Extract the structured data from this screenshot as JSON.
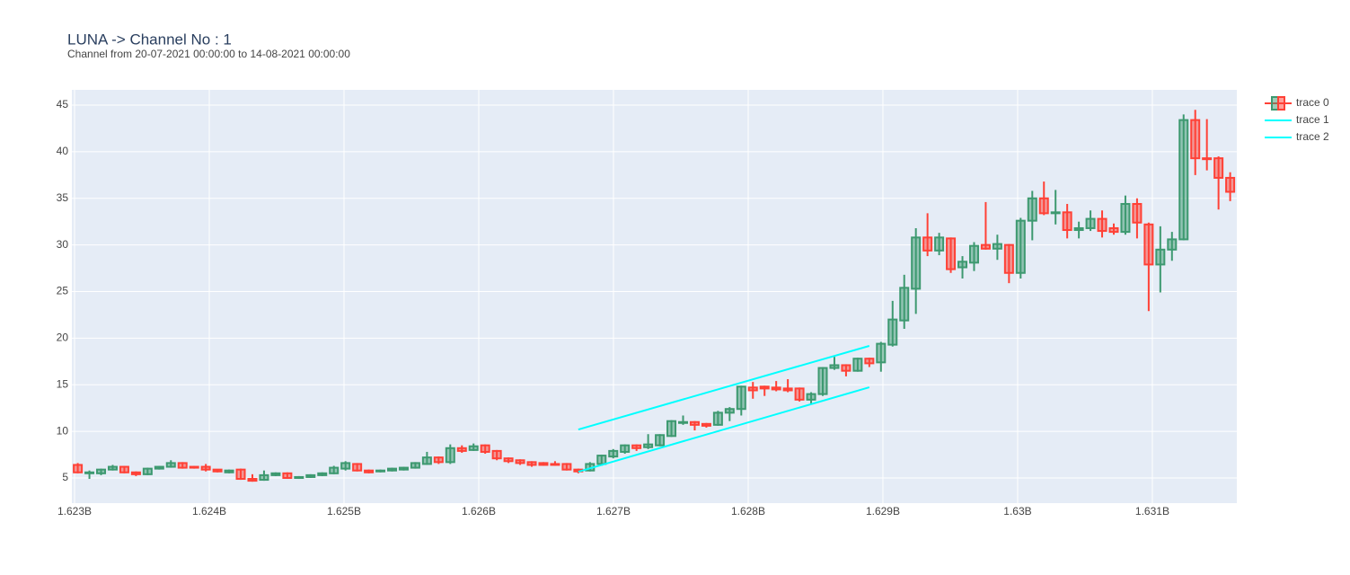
{
  "chart_data": {
    "type": "candlestick",
    "title": "LUNA -> Channel No : 1",
    "subtitle": "Channel from 20-07-2021 00:00:00 to 14-08-2021 00:00:00",
    "xlim": [
      1622980000,
      1631627000
    ],
    "ylim": [
      2.3,
      46.64
    ],
    "xticks": [
      {
        "value": 1623000000,
        "label": "1.623B"
      },
      {
        "value": 1624000000,
        "label": "1.624B"
      },
      {
        "value": 1625000000,
        "label": "1.625B"
      },
      {
        "value": 1626000000,
        "label": "1.626B"
      },
      {
        "value": 1627000000,
        "label": "1.627B"
      },
      {
        "value": 1628000000,
        "label": "1.628B"
      },
      {
        "value": 1629000000,
        "label": "1.629B"
      },
      {
        "value": 1630000000,
        "label": "1.63B"
      },
      {
        "value": 1631000000,
        "label": "1.631B"
      }
    ],
    "yticks": [
      5,
      10,
      15,
      20,
      25,
      30,
      35,
      40,
      45
    ],
    "grid": true,
    "legend": "top-right",
    "x": [
      1623024000,
      1623110400,
      1623196800,
      1623283200,
      1623369600,
      1623456000,
      1623542400,
      1623628800,
      1623715200,
      1623801600,
      1623888000,
      1623974400,
      1624060800,
      1624147200,
      1624233600,
      1624320000,
      1624406400,
      1624492800,
      1624579200,
      1624665600,
      1624752000,
      1624838400,
      1624924800,
      1625011200,
      1625097600,
      1625184000,
      1625270400,
      1625356800,
      1625443200,
      1625529600,
      1625616000,
      1625702400,
      1625788800,
      1625875200,
      1625961600,
      1626048000,
      1626134400,
      1626220800,
      1626307200,
      1626393600,
      1626480000,
      1626566400,
      1626652800,
      1626739200,
      1626825600,
      1626912000,
      1626998400,
      1627084800,
      1627171200,
      1627257600,
      1627344000,
      1627430400,
      1627516800,
      1627603200,
      1627689600,
      1627776000,
      1627862400,
      1627948800,
      1628035200,
      1628121600,
      1628208000,
      1628294400,
      1628380800,
      1628467200,
      1628553600,
      1628640000,
      1628726400,
      1628812800,
      1628899200,
      1628985600,
      1629072000,
      1629158400,
      1629244800,
      1629331200,
      1629417600,
      1629504000,
      1629590400,
      1629676800,
      1629763200,
      1629849600,
      1629936000,
      1630022400,
      1630108800,
      1630195200,
      1630281600,
      1630368000,
      1630454400,
      1630540800,
      1630627200,
      1630713600,
      1630800000,
      1630886400,
      1630972800,
      1631059200,
      1631145600,
      1631232000,
      1631318400,
      1631404800,
      1631491200,
      1631577600
    ],
    "series": [
      {
        "name": "trace 0",
        "increasing_color": "#3d9970",
        "decreasing_color": "#ff4136",
        "open": [
          6.4,
          5.5,
          5.5,
          5.9,
          6.2,
          5.6,
          5.4,
          6.0,
          6.2,
          6.6,
          6.2,
          6.2,
          5.9,
          5.6,
          5.9,
          4.9,
          4.8,
          5.3,
          5.5,
          5.0,
          5.1,
          5.3,
          5.5,
          6.0,
          6.5,
          5.8,
          5.7,
          5.8,
          5.9,
          6.1,
          6.5,
          7.2,
          6.7,
          8.2,
          8.0,
          8.5,
          7.9,
          7.1,
          6.9,
          6.7,
          6.6,
          6.5,
          6.5,
          5.9,
          5.8,
          6.5,
          7.3,
          7.8,
          8.5,
          8.3,
          8.5,
          9.5,
          10.9,
          11.0,
          10.8,
          10.7,
          12.0,
          12.4,
          14.7,
          14.8,
          14.7,
          14.6,
          14.6,
          13.4,
          14.0,
          16.8,
          17.1,
          16.5,
          17.8,
          17.4,
          19.3,
          21.9,
          25.3,
          30.8,
          29.4,
          30.7,
          27.6,
          28.1,
          30.0,
          29.6,
          30.0,
          27.0,
          32.6,
          35.0,
          33.4,
          33.5,
          31.6,
          31.8,
          32.8,
          31.8,
          31.4,
          34.4,
          32.2,
          27.9,
          29.5,
          30.6,
          43.4,
          39.3,
          39.3,
          37.2
        ],
        "high": [
          6.6,
          5.8,
          6.0,
          6.4,
          6.3,
          5.7,
          6.1,
          6.3,
          6.9,
          6.7,
          6.3,
          6.5,
          5.9,
          5.9,
          6.0,
          5.4,
          5.8,
          5.6,
          5.6,
          5.2,
          5.4,
          5.6,
          6.3,
          6.8,
          6.6,
          5.9,
          5.9,
          6.1,
          6.2,
          6.7,
          7.8,
          7.3,
          8.6,
          8.5,
          8.7,
          8.6,
          8.0,
          7.2,
          7.0,
          6.8,
          6.7,
          6.8,
          6.6,
          6.0,
          6.7,
          7.5,
          8.1,
          8.6,
          8.6,
          9.7,
          9.7,
          11.2,
          11.7,
          11.1,
          10.9,
          12.2,
          12.6,
          14.9,
          15.3,
          14.9,
          15.4,
          15.6,
          14.7,
          14.2,
          16.9,
          18.0,
          17.2,
          17.9,
          17.9,
          19.6,
          24.0,
          26.8,
          31.8,
          33.4,
          31.3,
          30.8,
          28.8,
          30.3,
          34.6,
          31.1,
          30.1,
          32.9,
          35.8,
          36.8,
          35.9,
          34.4,
          32.5,
          33.7,
          33.7,
          32.3,
          35.3,
          35.0,
          32.4,
          32.0,
          31.4,
          44.0,
          44.5,
          43.5,
          39.5,
          37.8
        ],
        "low": [
          5.5,
          4.9,
          5.3,
          5.8,
          5.5,
          5.2,
          5.3,
          5.9,
          6.1,
          6.0,
          6.0,
          5.7,
          5.6,
          5.5,
          4.8,
          4.6,
          4.7,
          5.2,
          4.9,
          4.9,
          5.0,
          5.2,
          5.4,
          5.8,
          5.7,
          5.5,
          5.6,
          5.7,
          5.8,
          6.0,
          6.4,
          6.5,
          6.5,
          7.7,
          7.9,
          7.6,
          6.9,
          6.6,
          6.4,
          6.2,
          6.3,
          6.3,
          5.8,
          5.5,
          5.7,
          6.3,
          7.1,
          7.6,
          7.9,
          8.1,
          8.4,
          9.4,
          10.7,
          10.1,
          10.4,
          10.6,
          11.1,
          11.7,
          13.5,
          13.8,
          14.3,
          14.2,
          13.2,
          13.0,
          13.8,
          16.6,
          15.9,
          16.4,
          16.9,
          16.4,
          19.1,
          21.0,
          22.6,
          28.8,
          28.9,
          27.0,
          26.4,
          27.2,
          29.5,
          28.4,
          25.9,
          26.4,
          30.5,
          33.2,
          32.2,
          30.7,
          30.7,
          31.5,
          30.8,
          31.1,
          31.1,
          30.7,
          22.9,
          24.9,
          28.3,
          30.5,
          37.5,
          38.0,
          33.8,
          34.7
        ],
        "close": [
          5.6,
          5.6,
          5.9,
          6.2,
          5.6,
          5.4,
          6.0,
          6.2,
          6.6,
          6.1,
          6.1,
          5.9,
          5.7,
          5.8,
          4.9,
          4.7,
          5.3,
          5.5,
          5.0,
          5.1,
          5.3,
          5.5,
          6.1,
          6.6,
          5.8,
          5.6,
          5.8,
          6.0,
          6.1,
          6.6,
          7.2,
          6.7,
          8.2,
          7.9,
          8.4,
          7.8,
          7.1,
          6.8,
          6.6,
          6.4,
          6.4,
          6.4,
          5.9,
          5.7,
          6.5,
          7.4,
          7.9,
          8.5,
          8.2,
          8.6,
          9.6,
          11.1,
          11.0,
          10.7,
          10.6,
          12.0,
          12.4,
          14.8,
          14.4,
          14.6,
          14.5,
          14.4,
          13.4,
          14.0,
          16.8,
          17.1,
          16.5,
          17.8,
          17.3,
          19.4,
          22.0,
          25.4,
          30.8,
          29.4,
          30.8,
          27.4,
          28.2,
          29.9,
          29.6,
          30.1,
          27.0,
          32.6,
          35.0,
          33.4,
          33.5,
          31.6,
          31.8,
          32.8,
          31.5,
          31.4,
          34.4,
          32.4,
          27.9,
          29.5,
          30.6,
          43.4,
          39.3,
          39.2,
          37.2,
          35.7
        ]
      },
      {
        "name": "trace 1",
        "color": "#00ffff",
        "x": [
          1626739200,
          1628899200
        ],
        "values": [
          10.2,
          19.17
        ]
      },
      {
        "name": "trace 2",
        "color": "#00ffff",
        "x": [
          1626739200,
          1628899200
        ],
        "values": [
          5.67,
          14.73
        ]
      }
    ]
  }
}
